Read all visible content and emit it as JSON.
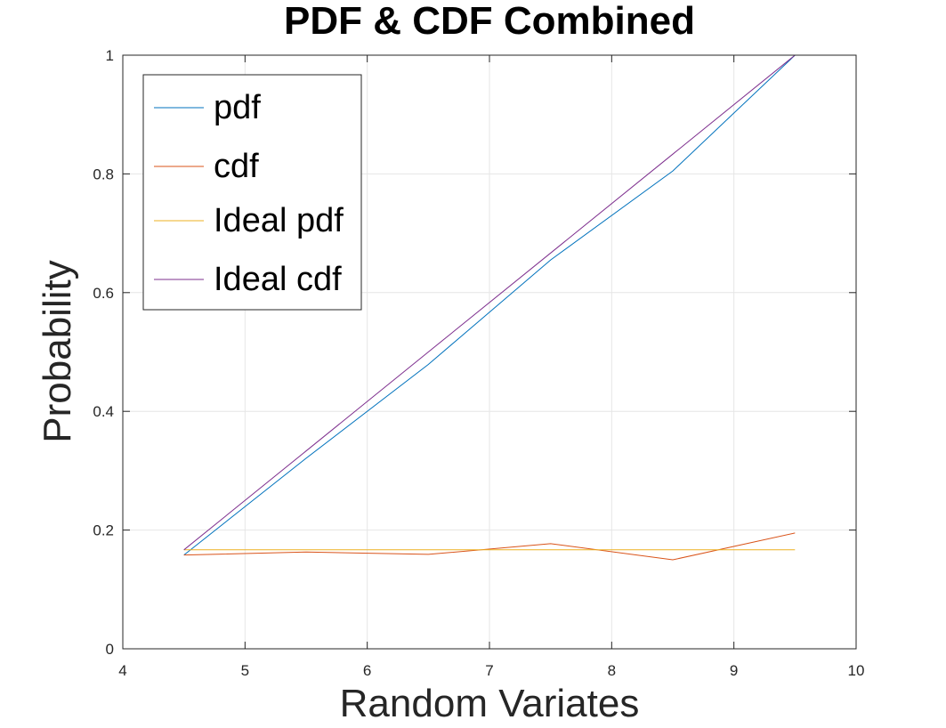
{
  "chart_data": {
    "type": "line",
    "title": "PDF & CDF Combined",
    "xlabel": "Random Variates",
    "ylabel": "Probability",
    "xlim": [
      4,
      10
    ],
    "ylim": [
      0,
      1
    ],
    "xticks": [
      4,
      5,
      6,
      7,
      8,
      9,
      10
    ],
    "yticks": [
      0,
      0.2,
      0.4,
      0.6,
      0.8,
      1
    ],
    "xtick_labels": [
      "4",
      "5",
      "6",
      "7",
      "8",
      "9",
      "10"
    ],
    "ytick_labels": [
      "0",
      "0.2",
      "0.4",
      "0.6",
      "0.8",
      "1"
    ],
    "grid": true,
    "legend_position": "top-left",
    "x": [
      4.5,
      5.5,
      6.5,
      7.5,
      8.5,
      9.5
    ],
    "series": [
      {
        "name": "pdf",
        "color": "#0072BD",
        "values": [
          0.158,
          0.321,
          0.479,
          0.655,
          0.805,
          1.0
        ]
      },
      {
        "name": "cdf",
        "color": "#D95319",
        "values": [
          0.158,
          0.163,
          0.159,
          0.177,
          0.15,
          0.195
        ]
      },
      {
        "name": "Ideal pdf",
        "color": "#EDB120",
        "values": [
          0.1667,
          0.1667,
          0.1667,
          0.1667,
          0.1667,
          0.1667
        ]
      },
      {
        "name": "Ideal cdf",
        "color": "#7E2F8E",
        "values": [
          0.1667,
          0.3333,
          0.5,
          0.6667,
          0.8333,
          1.0
        ]
      }
    ]
  }
}
